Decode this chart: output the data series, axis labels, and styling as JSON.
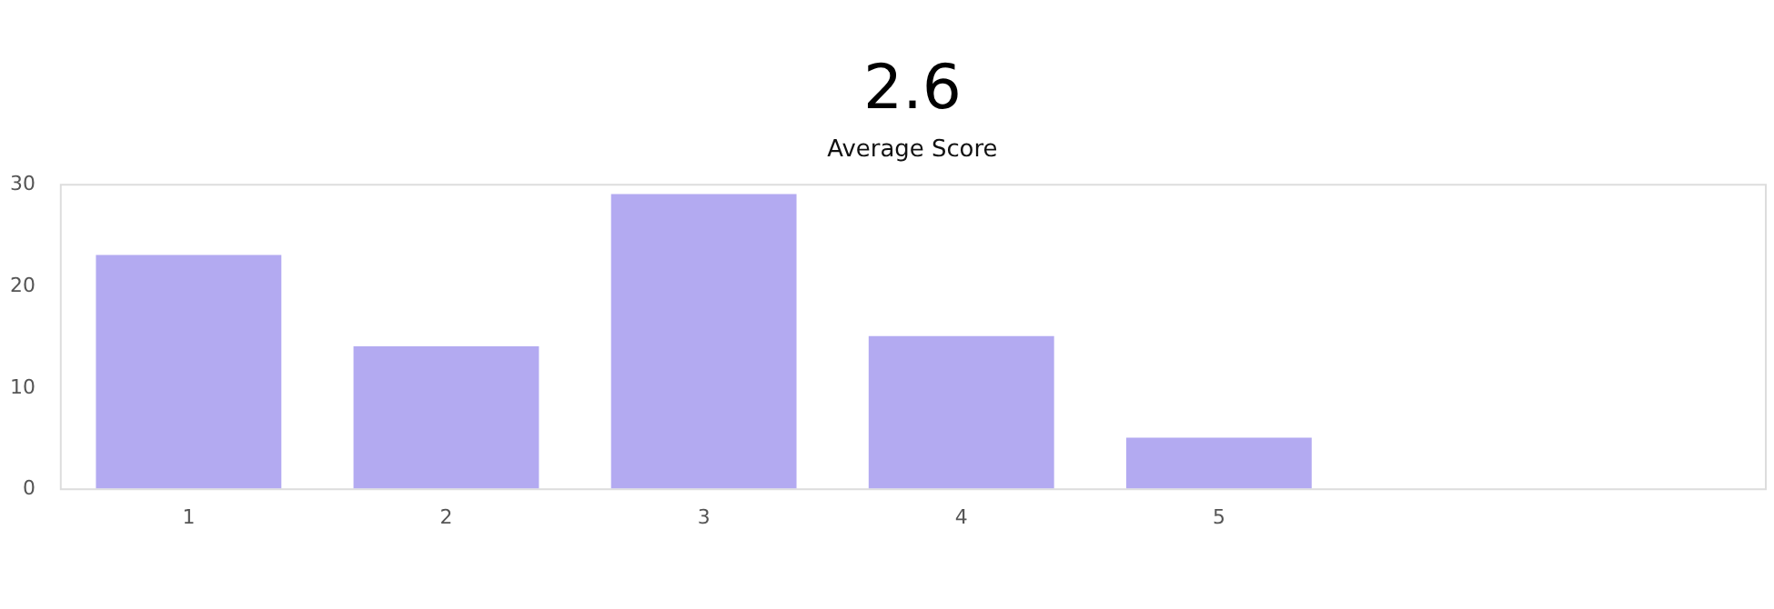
{
  "chart_data": {
    "type": "bar",
    "title": "2.6",
    "subtitle": "Average Score",
    "categories": [
      "1",
      "2",
      "3",
      "4",
      "5"
    ],
    "values": [
      23,
      14,
      29,
      15,
      5
    ],
    "color": "#b3aaf1",
    "ylim": [
      0,
      30
    ],
    "yticks": [
      0,
      10,
      20,
      30
    ],
    "grid": false
  }
}
